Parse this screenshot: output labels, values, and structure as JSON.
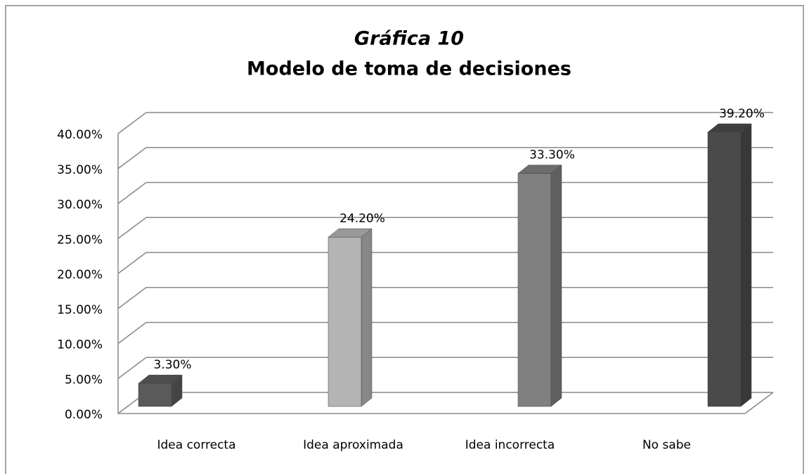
{
  "chart_data": {
    "type": "bar3d",
    "title": "Gráfica 10",
    "subtitle": "Modelo de toma de decisiones",
    "categories": [
      "Idea correcta",
      "Idea aproximada",
      "Idea incorrecta",
      "No sabe"
    ],
    "values": [
      3.3,
      24.2,
      33.3,
      39.2
    ],
    "value_labels": [
      "3.30%",
      "24.20%",
      "33.30%",
      "39.20%"
    ],
    "colors": [
      "#5a5a5a",
      "#b4b4b4",
      "#808080",
      "#4a4a4a"
    ],
    "ylim": [
      0,
      40
    ],
    "yticks": [
      {
        "value": 0,
        "label": "0.00%"
      },
      {
        "value": 5,
        "label": "5.00%"
      },
      {
        "value": 10,
        "label": "10.00%"
      },
      {
        "value": 15,
        "label": "15.00%"
      },
      {
        "value": 20,
        "label": "20.00%"
      },
      {
        "value": 25,
        "label": "25.00%"
      },
      {
        "value": 30,
        "label": "30.00%"
      },
      {
        "value": 35,
        "label": "35.00%"
      },
      {
        "value": 40,
        "label": "40.00%"
      }
    ],
    "grid": true
  }
}
